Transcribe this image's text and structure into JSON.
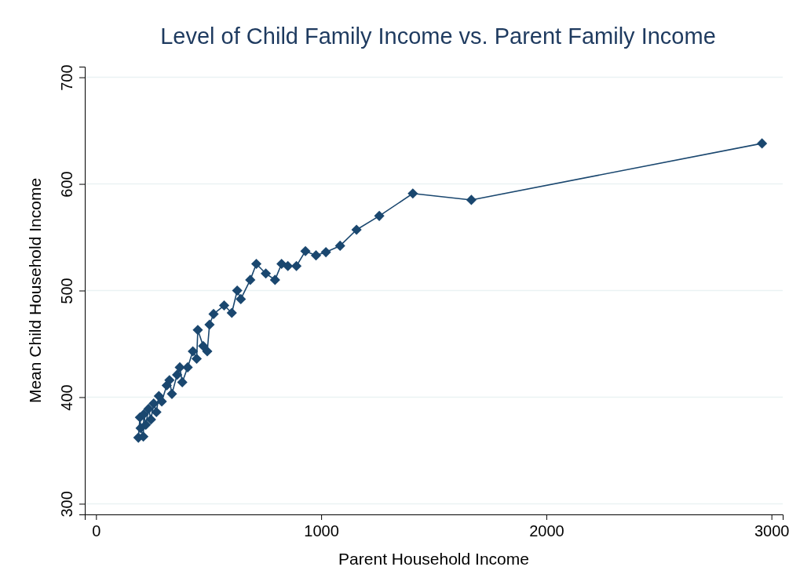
{
  "chart_data": {
    "type": "line",
    "title": "Level of Child Family Income vs. Parent Family Income",
    "xlabel": "Parent Household Income",
    "ylabel": "Mean Child Household Income",
    "x": [
      188,
      195,
      198,
      210,
      212,
      221,
      233,
      244,
      256,
      268,
      279,
      292,
      314,
      326,
      337,
      360,
      372,
      383,
      407,
      430,
      447,
      452,
      476,
      494,
      504,
      522,
      569,
      603,
      627,
      643,
      685,
      712,
      754,
      795,
      824,
      852,
      890,
      930,
      977,
      1021,
      1084,
      1157,
      1258,
      1407,
      1667,
      2958
    ],
    "series": [
      {
        "color": "#1a476f",
        "values": [
          362,
          381,
          371,
          363,
          384,
          374,
          389,
          379,
          394,
          386,
          401,
          396,
          411,
          416,
          403,
          421,
          428,
          414,
          428,
          443,
          436,
          463,
          448,
          443,
          468,
          478,
          486,
          479,
          500,
          492,
          510,
          525,
          516,
          510,
          525,
          523,
          523,
          537,
          533,
          536,
          542,
          557,
          570,
          591,
          585,
          638
        ]
      }
    ],
    "xlim": [
      -50,
      3050
    ],
    "xticks": [
      0,
      1000,
      2000,
      3000
    ],
    "ylim": [
      290,
      710
    ],
    "yticks": [
      300,
      400,
      500,
      600,
      700
    ],
    "grid": "y",
    "marker": "diamond",
    "line_style": "solid"
  }
}
